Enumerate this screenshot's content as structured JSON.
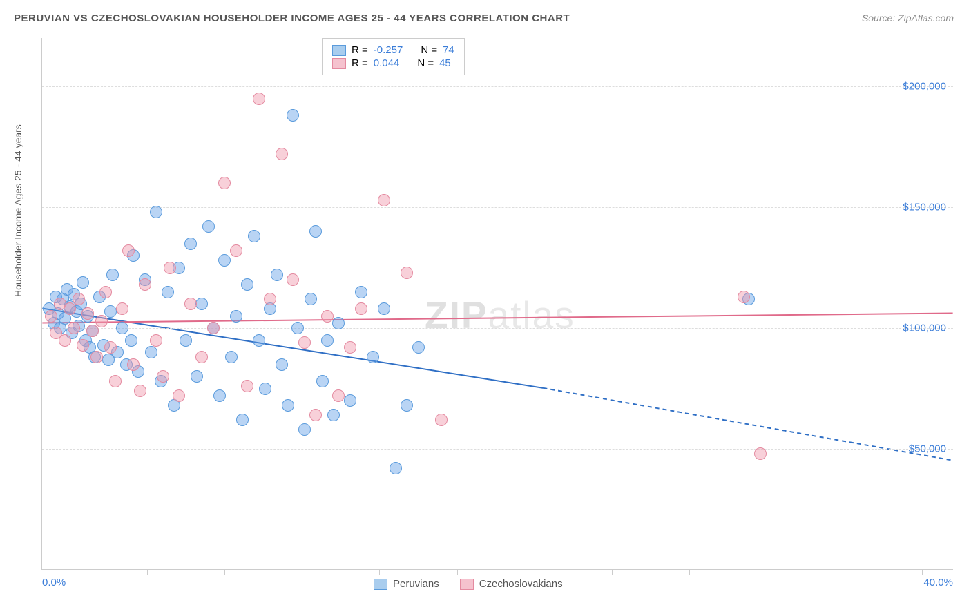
{
  "title": "PERUVIAN VS CZECHOSLOVAKIAN HOUSEHOLDER INCOME AGES 25 - 44 YEARS CORRELATION CHART",
  "source": "Source: ZipAtlas.com",
  "watermark_bold": "ZIP",
  "watermark_light": "atlas",
  "chart": {
    "type": "scatter",
    "ylabel": "Householder Income Ages 25 - 44 years",
    "xlim": [
      0,
      40
    ],
    "ylim": [
      0,
      220000
    ],
    "xlabel_min": "0.0%",
    "xlabel_max": "40.0%",
    "xtick_positions_pct": [
      3,
      11.5,
      20,
      28.5,
      37,
      45.5,
      54,
      62.5,
      71,
      79.5,
      88,
      96.5
    ],
    "yticks": [
      {
        "value": 50000,
        "label": "$50,000"
      },
      {
        "value": 100000,
        "label": "$100,000"
      },
      {
        "value": 150000,
        "label": "$150,000"
      },
      {
        "value": 200000,
        "label": "$200,000"
      }
    ],
    "grid_color": "#dddddd",
    "background_color": "#ffffff",
    "marker_radius": 9,
    "series": [
      {
        "name": "Peruvians",
        "fill": "rgba(100,160,230,0.45)",
        "stroke": "#5a9bdc",
        "swatch_fill": "#a9cdee",
        "swatch_border": "#5a9bdc",
        "R": "-0.257",
        "N": "74",
        "trend": {
          "x1": 0,
          "y1": 108000,
          "x2_solid": 22,
          "y2_solid": 75000,
          "x2": 40,
          "y2": 45000,
          "color": "#2f6fc5",
          "width": 2
        },
        "points": [
          [
            0.3,
            108000
          ],
          [
            0.5,
            102000
          ],
          [
            0.6,
            113000
          ],
          [
            0.7,
            106000
          ],
          [
            0.8,
            100000
          ],
          [
            0.9,
            112000
          ],
          [
            1.0,
            104000
          ],
          [
            1.1,
            116000
          ],
          [
            1.2,
            109000
          ],
          [
            1.3,
            98000
          ],
          [
            1.4,
            114000
          ],
          [
            1.5,
            107000
          ],
          [
            1.6,
            101000
          ],
          [
            1.7,
            110000
          ],
          [
            1.8,
            119000
          ],
          [
            1.9,
            95000
          ],
          [
            2.0,
            105000
          ],
          [
            2.1,
            92000
          ],
          [
            2.2,
            99000
          ],
          [
            2.3,
            88000
          ],
          [
            2.5,
            113000
          ],
          [
            2.7,
            93000
          ],
          [
            2.9,
            87000
          ],
          [
            3.0,
            107000
          ],
          [
            3.1,
            122000
          ],
          [
            3.3,
            90000
          ],
          [
            3.5,
            100000
          ],
          [
            3.7,
            85000
          ],
          [
            3.9,
            95000
          ],
          [
            4.0,
            130000
          ],
          [
            4.2,
            82000
          ],
          [
            4.5,
            120000
          ],
          [
            4.8,
            90000
          ],
          [
            5.0,
            148000
          ],
          [
            5.2,
            78000
          ],
          [
            5.5,
            115000
          ],
          [
            5.8,
            68000
          ],
          [
            6.0,
            125000
          ],
          [
            6.3,
            95000
          ],
          [
            6.5,
            135000
          ],
          [
            6.8,
            80000
          ],
          [
            7.0,
            110000
          ],
          [
            7.3,
            142000
          ],
          [
            7.5,
            100000
          ],
          [
            7.8,
            72000
          ],
          [
            8.0,
            128000
          ],
          [
            8.3,
            88000
          ],
          [
            8.5,
            105000
          ],
          [
            8.8,
            62000
          ],
          [
            9.0,
            118000
          ],
          [
            9.3,
            138000
          ],
          [
            9.5,
            95000
          ],
          [
            9.8,
            75000
          ],
          [
            10.0,
            108000
          ],
          [
            10.3,
            122000
          ],
          [
            10.5,
            85000
          ],
          [
            10.8,
            68000
          ],
          [
            11.0,
            188000
          ],
          [
            11.2,
            100000
          ],
          [
            11.5,
            58000
          ],
          [
            11.8,
            112000
          ],
          [
            12.0,
            140000
          ],
          [
            12.3,
            78000
          ],
          [
            12.5,
            95000
          ],
          [
            12.8,
            64000
          ],
          [
            13.0,
            102000
          ],
          [
            13.5,
            70000
          ],
          [
            14.0,
            115000
          ],
          [
            14.5,
            88000
          ],
          [
            15.0,
            108000
          ],
          [
            15.5,
            42000
          ],
          [
            16.0,
            68000
          ],
          [
            16.5,
            92000
          ],
          [
            31.0,
            112000
          ]
        ]
      },
      {
        "name": "Czechoslovakians",
        "fill": "rgba(240,150,170,0.45)",
        "stroke": "#e48aa0",
        "swatch_fill": "#f5c2ce",
        "swatch_border": "#e48aa0",
        "R": "0.044",
        "N": "45",
        "trend": {
          "x1": 0,
          "y1": 102000,
          "x2_solid": 40,
          "y2_solid": 106000,
          "x2": 40,
          "y2": 106000,
          "color": "#e06a8a",
          "width": 2
        },
        "points": [
          [
            0.4,
            105000
          ],
          [
            0.6,
            98000
          ],
          [
            0.8,
            110000
          ],
          [
            1.0,
            95000
          ],
          [
            1.2,
            108000
          ],
          [
            1.4,
            100000
          ],
          [
            1.6,
            112000
          ],
          [
            1.8,
            93000
          ],
          [
            2.0,
            106000
          ],
          [
            2.2,
            99000
          ],
          [
            2.4,
            88000
          ],
          [
            2.6,
            103000
          ],
          [
            2.8,
            115000
          ],
          [
            3.0,
            92000
          ],
          [
            3.2,
            78000
          ],
          [
            3.5,
            108000
          ],
          [
            3.8,
            132000
          ],
          [
            4.0,
            85000
          ],
          [
            4.3,
            74000
          ],
          [
            4.5,
            118000
          ],
          [
            5.0,
            95000
          ],
          [
            5.3,
            80000
          ],
          [
            5.6,
            125000
          ],
          [
            6.0,
            72000
          ],
          [
            6.5,
            110000
          ],
          [
            7.0,
            88000
          ],
          [
            7.5,
            100000
          ],
          [
            8.0,
            160000
          ],
          [
            8.5,
            132000
          ],
          [
            9.0,
            76000
          ],
          [
            9.5,
            195000
          ],
          [
            10.0,
            112000
          ],
          [
            10.5,
            172000
          ],
          [
            11.0,
            120000
          ],
          [
            11.5,
            94000
          ],
          [
            12.0,
            64000
          ],
          [
            12.5,
            105000
          ],
          [
            13.0,
            72000
          ],
          [
            13.5,
            92000
          ],
          [
            14.0,
            108000
          ],
          [
            15.0,
            153000
          ],
          [
            16.0,
            123000
          ],
          [
            17.5,
            62000
          ],
          [
            31.5,
            48000
          ],
          [
            30.8,
            113000
          ]
        ]
      }
    ]
  },
  "legend_bottom": [
    {
      "label": "Peruvians",
      "fill": "#a9cdee",
      "border": "#5a9bdc"
    },
    {
      "label": "Czechoslovakians",
      "fill": "#f5c2ce",
      "border": "#e48aa0"
    }
  ]
}
